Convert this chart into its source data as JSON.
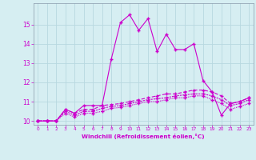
{
  "title": "",
  "xlabel": "Windchill (Refroidissement éolien,°C)",
  "ylabel": "",
  "background_color": "#d6eef2",
  "grid_color": "#b8d8e0",
  "line_color": "#cc00cc",
  "x_hours": [
    0,
    1,
    2,
    3,
    4,
    5,
    6,
    7,
    8,
    9,
    10,
    11,
    12,
    13,
    14,
    15,
    16,
    17,
    18,
    19,
    20,
    21,
    22,
    23
  ],
  "series1": [
    10.0,
    10.0,
    10.0,
    10.6,
    10.4,
    10.8,
    10.8,
    10.8,
    13.2,
    15.1,
    15.5,
    14.7,
    15.3,
    13.6,
    14.5,
    13.7,
    13.7,
    14.0,
    12.1,
    11.5,
    10.3,
    10.9,
    11.0,
    11.2
  ],
  "series2": [
    10.0,
    10.0,
    10.0,
    10.6,
    10.4,
    10.6,
    10.6,
    10.8,
    10.85,
    10.9,
    11.0,
    11.1,
    11.2,
    11.3,
    11.4,
    11.4,
    11.5,
    11.6,
    11.6,
    11.5,
    11.3,
    10.9,
    11.0,
    11.2
  ],
  "series3": [
    10.0,
    10.0,
    10.0,
    10.5,
    10.3,
    10.5,
    10.5,
    10.65,
    10.75,
    10.8,
    10.9,
    11.0,
    11.1,
    11.15,
    11.2,
    11.3,
    11.35,
    11.4,
    11.4,
    11.3,
    11.1,
    10.8,
    10.9,
    11.1
  ],
  "series4": [
    10.0,
    10.0,
    10.0,
    10.4,
    10.2,
    10.4,
    10.4,
    10.5,
    10.65,
    10.7,
    10.8,
    10.9,
    11.0,
    11.0,
    11.1,
    11.2,
    11.2,
    11.3,
    11.3,
    11.1,
    10.9,
    10.6,
    10.75,
    10.9
  ],
  "ylim_min": 9.8,
  "ylim_max": 16.1,
  "yticks": [
    10,
    11,
    12,
    13,
    14,
    15
  ],
  "marker": "+"
}
